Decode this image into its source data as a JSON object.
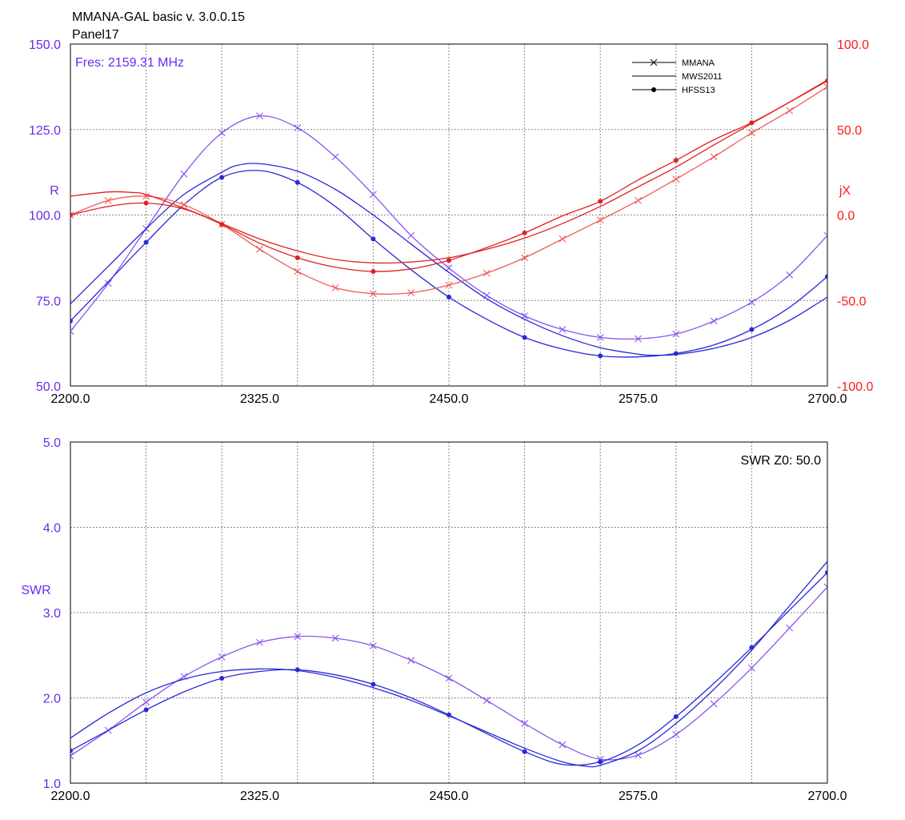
{
  "header": {
    "title": "MMANA-GAL basic   v. 3.0.0.15",
    "subtitle": "Panel17"
  },
  "colors": {
    "mmana_r": "#8a55f0",
    "r_model": "#2a2ad6",
    "mmana_x": "#f05a5a",
    "x_model": "#e02020",
    "r_axis": "#6a2bf0",
    "x_axis": "#ff1a1a",
    "grid": "#888888",
    "text": "#000000"
  },
  "chart_data": [
    {
      "id": "impedance",
      "type": "line",
      "annotation": "Fres: 2159.31 MHz",
      "left_axis_label": "R",
      "right_axis_label": "jX",
      "xlim": [
        2200,
        2700
      ],
      "ylim_left": [
        50,
        150
      ],
      "ylim_right": [
        -100,
        100
      ],
      "x_tick_labels": [
        "2200.0",
        "2325.0",
        "2450.0",
        "2575.0",
        "2700.0"
      ],
      "left_tick_labels": [
        "150.0",
        "125.0",
        "100.0",
        "75.0",
        "50.0"
      ],
      "right_tick_labels": [
        "100.0",
        "50.0",
        "0.0",
        "-50.0",
        "-100.0"
      ],
      "legend": [
        "MMANA",
        "MWS2011",
        "HFSS13"
      ],
      "legend_position": "top-right",
      "series": [
        {
          "quantity": "R",
          "axis": "left",
          "marker": "x",
          "color_key": "mmana_r",
          "x": [
            2200,
            2225,
            2250,
            2275,
            2300,
            2325,
            2350,
            2375,
            2400,
            2425,
            2450,
            2475,
            2500,
            2525,
            2550,
            2575,
            2600,
            2625,
            2650,
            2675,
            2700
          ],
          "y": [
            66,
            80,
            96,
            112,
            124,
            129,
            125.5,
            117,
            106,
            94,
            84.5,
            76.5,
            70.5,
            66.5,
            64.2,
            63.8,
            65.2,
            69,
            74.5,
            82.5,
            94
          ]
        },
        {
          "quantity": "R",
          "axis": "left",
          "marker": "none",
          "color_key": "r_model",
          "x": [
            2200,
            2225,
            2250,
            2275,
            2300,
            2310,
            2325,
            2350,
            2375,
            2400,
            2425,
            2450,
            2475,
            2500,
            2525,
            2550,
            2575,
            2585,
            2600,
            2625,
            2650,
            2675,
            2700
          ],
          "y": [
            74,
            85,
            96,
            106,
            112.5,
            114.5,
            115,
            112.8,
            107.5,
            100,
            91.5,
            83.2,
            75.5,
            69.5,
            64.7,
            61.2,
            59.3,
            59,
            59.2,
            61,
            64.2,
            69.2,
            76
          ]
        },
        {
          "quantity": "R",
          "axis": "left",
          "marker": "dot",
          "color_key": "r_model",
          "x": [
            2200,
            2225,
            2250,
            2275,
            2300,
            2325,
            2350,
            2375,
            2400,
            2425,
            2450,
            2475,
            2500,
            2525,
            2550,
            2575,
            2600,
            2625,
            2650,
            2675,
            2700
          ],
          "y": [
            69,
            80.5,
            92,
            103,
            111,
            113,
            109.5,
            102.5,
            93,
            84,
            76,
            69.5,
            64.2,
            60.8,
            58.8,
            58.5,
            59.5,
            62,
            66.5,
            73,
            82
          ]
        },
        {
          "quantity": "jX",
          "axis": "right",
          "marker": "x",
          "color_key": "mmana_x",
          "x": [
            2200,
            2225,
            2250,
            2275,
            2300,
            2325,
            2350,
            2375,
            2400,
            2425,
            2450,
            2475,
            2500,
            2525,
            2550,
            2575,
            2600,
            2625,
            2650,
            2675,
            2700
          ],
          "y": [
            0,
            8.5,
            11,
            6,
            -5.5,
            -20,
            -33,
            -42.5,
            -46,
            -45.5,
            -41,
            -34,
            -25,
            -14,
            -3,
            8.5,
            21,
            34,
            48,
            61,
            75
          ]
        },
        {
          "quantity": "jX",
          "axis": "right",
          "marker": "none",
          "color_key": "x_model",
          "x": [
            2200,
            2225,
            2240,
            2250,
            2275,
            2300,
            2325,
            2350,
            2375,
            2400,
            2425,
            2450,
            2475,
            2500,
            2525,
            2550,
            2575,
            2600,
            2625,
            2650,
            2675,
            2700
          ],
          "y": [
            11,
            13.5,
            13.2,
            12,
            4,
            -5,
            -14,
            -21,
            -26,
            -28,
            -27.5,
            -25,
            -20,
            -13.5,
            -5,
            5,
            16.5,
            28,
            41,
            53.5,
            66,
            79
          ]
        },
        {
          "quantity": "jX",
          "axis": "right",
          "marker": "dot",
          "color_key": "x_model",
          "x": [
            2200,
            2225,
            2250,
            2275,
            2300,
            2325,
            2350,
            2375,
            2400,
            2425,
            2450,
            2475,
            2500,
            2525,
            2550,
            2575,
            2600,
            2625,
            2650,
            2675,
            2700
          ],
          "y": [
            0,
            5,
            7,
            3.5,
            -5.5,
            -16.5,
            -25,
            -30.5,
            -33,
            -31.5,
            -26.5,
            -19,
            -10.5,
            -0.5,
            8,
            20.5,
            32,
            44,
            54,
            66,
            78.5
          ]
        }
      ]
    },
    {
      "id": "swr",
      "type": "line",
      "annotation": "SWR Z0: 50.0",
      "left_axis_label": "SWR",
      "xlim": [
        2200,
        2700
      ],
      "ylim": [
        1.0,
        5.0
      ],
      "x_tick_labels": [
        "2200.0",
        "2325.0",
        "2450.0",
        "2575.0",
        "2700.0"
      ],
      "y_tick_labels": [
        "5.0",
        "4.0",
        "3.0",
        "2.0",
        "1.0"
      ],
      "series": [
        {
          "quantity": "SWR",
          "marker": "x",
          "color_key": "mmana_r",
          "x": [
            2200,
            2225,
            2250,
            2275,
            2300,
            2325,
            2350,
            2375,
            2400,
            2425,
            2450,
            2475,
            2500,
            2525,
            2550,
            2575,
            2600,
            2625,
            2650,
            2675,
            2700
          ],
          "y": [
            1.32,
            1.62,
            1.95,
            2.25,
            2.48,
            2.65,
            2.72,
            2.7,
            2.61,
            2.44,
            2.23,
            1.97,
            1.7,
            1.45,
            1.28,
            1.33,
            1.57,
            1.93,
            2.35,
            2.82,
            3.3
          ]
        },
        {
          "quantity": "SWR",
          "marker": "none",
          "color_key": "r_model",
          "x": [
            2200,
            2225,
            2250,
            2275,
            2300,
            2325,
            2350,
            2375,
            2400,
            2425,
            2450,
            2475,
            2500,
            2525,
            2540,
            2550,
            2575,
            2600,
            2625,
            2650,
            2675,
            2700
          ],
          "y": [
            1.53,
            1.82,
            2.06,
            2.22,
            2.31,
            2.34,
            2.32,
            2.24,
            2.12,
            1.97,
            1.79,
            1.6,
            1.41,
            1.25,
            1.2,
            1.21,
            1.38,
            1.7,
            2.1,
            2.56,
            3.08,
            3.6
          ]
        },
        {
          "quantity": "SWR",
          "marker": "dot",
          "color_key": "r_model",
          "x": [
            2200,
            2225,
            2250,
            2275,
            2300,
            2325,
            2350,
            2375,
            2400,
            2425,
            2450,
            2475,
            2500,
            2525,
            2550,
            2575,
            2600,
            2625,
            2650,
            2675,
            2700
          ],
          "y": [
            1.38,
            1.62,
            1.86,
            2.07,
            2.23,
            2.31,
            2.33,
            2.27,
            2.16,
            2.0,
            1.8,
            1.58,
            1.37,
            1.22,
            1.25,
            1.45,
            1.78,
            2.17,
            2.59,
            3.03,
            3.47
          ]
        }
      ]
    }
  ]
}
